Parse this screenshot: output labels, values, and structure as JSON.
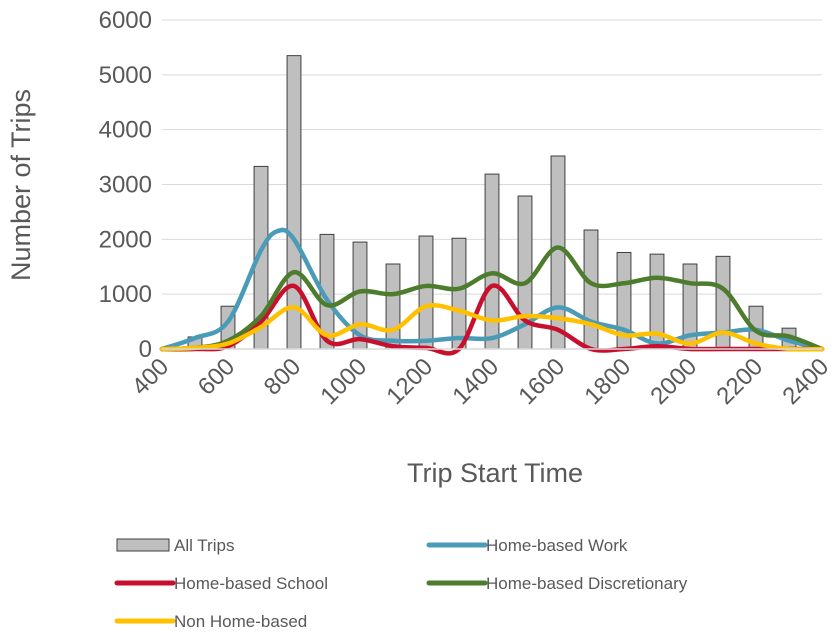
{
  "chart_data": {
    "type": "bar",
    "title": "",
    "xlabel": "Trip Start Time",
    "ylabel": "Number of Trips",
    "xlim": [
      400,
      2400
    ],
    "ylim": [
      0,
      6000
    ],
    "x_ticks": [
      "400",
      "600",
      "800",
      "1000",
      "1200",
      "1400",
      "1600",
      "1800",
      "2000",
      "2200",
      "2400"
    ],
    "y_ticks": [
      "0",
      "1000",
      "2000",
      "3000",
      "4000",
      "5000",
      "6000"
    ],
    "grid": "horizontal",
    "legend_position": "bottom",
    "bar_series": {
      "name": "All Trips",
      "color": "#bfbfbf",
      "x": [
        500,
        600,
        700,
        800,
        900,
        1000,
        1100,
        1200,
        1300,
        1400,
        1500,
        1600,
        1700,
        1800,
        1900,
        2000,
        2100,
        2200,
        2300
      ],
      "values": [
        220,
        780,
        3330,
        5350,
        2090,
        1950,
        1550,
        2060,
        2020,
        3190,
        2790,
        3520,
        2170,
        1760,
        1730,
        1550,
        1690,
        780,
        380
      ]
    },
    "series": [
      {
        "name": "Home-based Work",
        "color": "#4a9bb7",
        "x": [
          400,
          500,
          600,
          700,
          750,
          800,
          900,
          1000,
          1100,
          1200,
          1300,
          1400,
          1500,
          1600,
          1700,
          1800,
          1900,
          2000,
          2100,
          2200,
          2300,
          2400
        ],
        "values": [
          0,
          200,
          500,
          1800,
          2150,
          2000,
          900,
          250,
          150,
          150,
          200,
          200,
          450,
          760,
          500,
          350,
          100,
          250,
          300,
          350,
          150,
          0
        ]
      },
      {
        "name": "Home-based School",
        "color": "#c8102e",
        "x": [
          400,
          500,
          600,
          700,
          800,
          900,
          1000,
          1100,
          1200,
          1300,
          1400,
          1500,
          1600,
          1700,
          1800,
          1900,
          2000,
          2100,
          2200,
          2300,
          2400
        ],
        "values": [
          0,
          0,
          50,
          500,
          1150,
          150,
          180,
          50,
          20,
          0,
          1150,
          520,
          350,
          0,
          0,
          50,
          0,
          0,
          0,
          0,
          0
        ]
      },
      {
        "name": "Home-based Discretionary",
        "color": "#4c7c2c",
        "x": [
          400,
          500,
          600,
          700,
          800,
          900,
          1000,
          1100,
          1200,
          1300,
          1400,
          1500,
          1600,
          1700,
          1800,
          1900,
          2000,
          2100,
          2200,
          2300,
          2400
        ],
        "values": [
          0,
          20,
          150,
          600,
          1400,
          800,
          1050,
          1000,
          1150,
          1100,
          1380,
          1200,
          1850,
          1200,
          1200,
          1300,
          1200,
          1100,
          330,
          230,
          0
        ]
      },
      {
        "name": "Non Home-based",
        "color": "#ffc000",
        "x": [
          400,
          500,
          600,
          700,
          800,
          900,
          1000,
          1100,
          1200,
          1300,
          1400,
          1500,
          1600,
          1700,
          1800,
          1900,
          2000,
          2100,
          2200,
          2300,
          2400
        ],
        "values": [
          0,
          20,
          100,
          400,
          760,
          250,
          450,
          350,
          780,
          700,
          520,
          600,
          560,
          450,
          250,
          280,
          100,
          300,
          100,
          0,
          0
        ]
      }
    ]
  }
}
